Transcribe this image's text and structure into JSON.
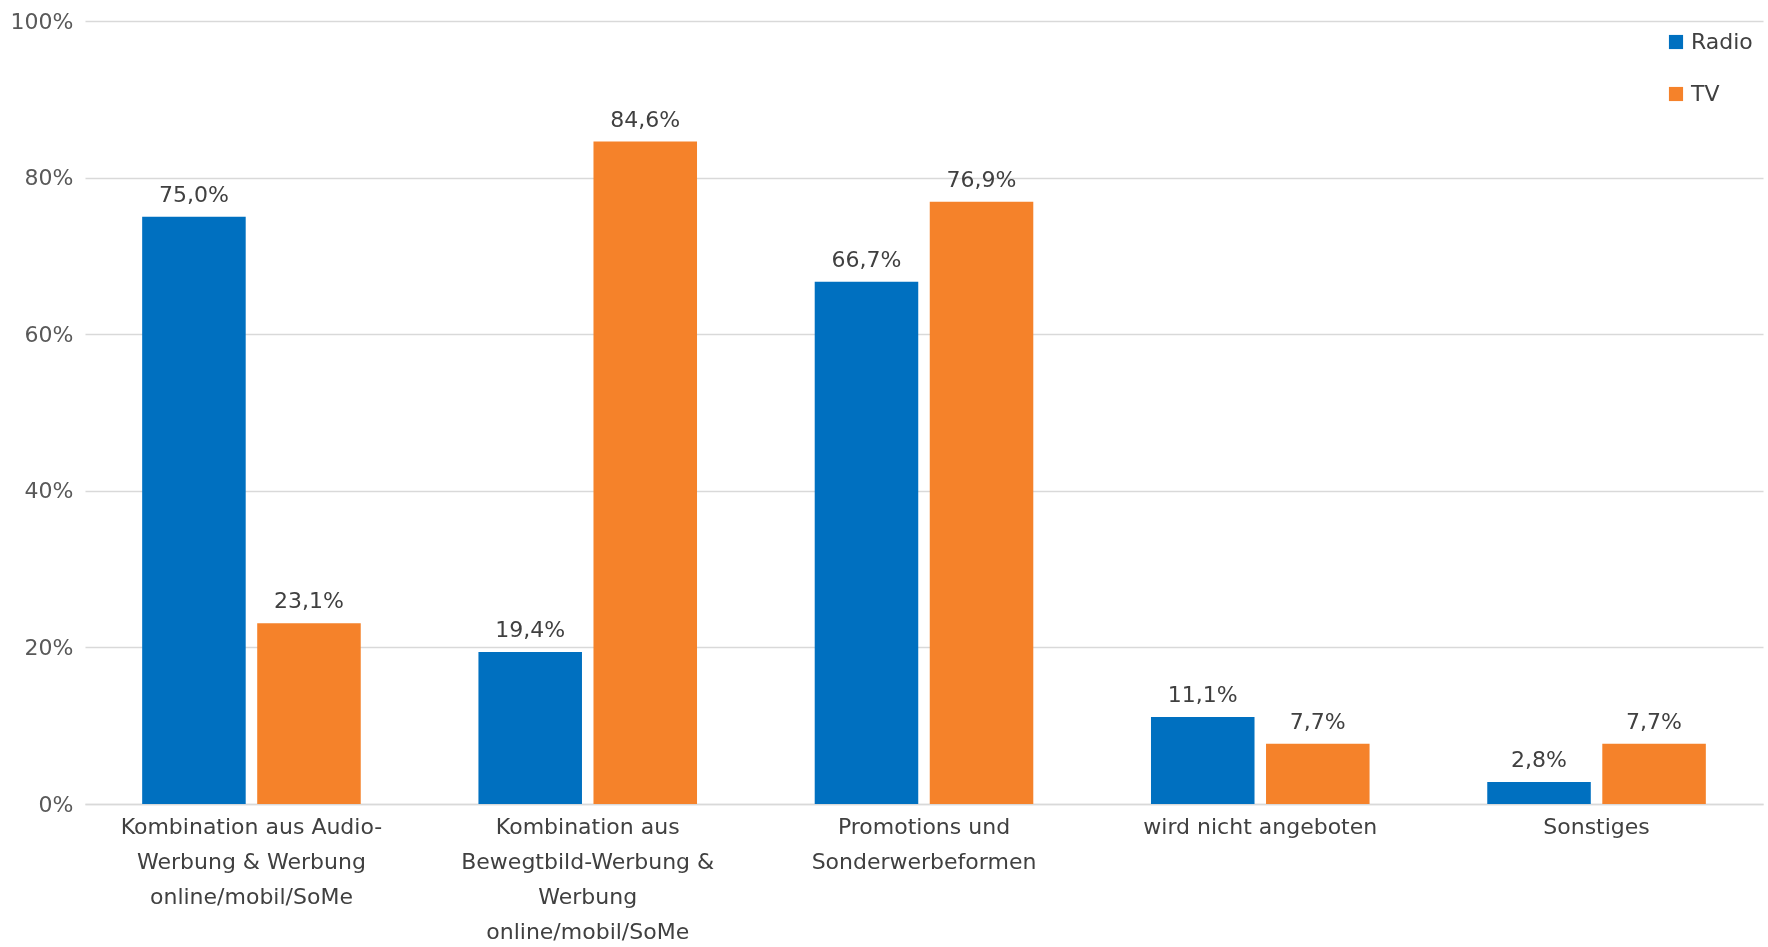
{
  "chart_data": {
    "type": "bar",
    "categories": [
      "Kombination aus Audio-Werbung & Werbung online/mobil/SoMe",
      "Kombination aus Bewegtbild-Werbung & Werbung online/mobil/SoMe",
      "Promotions und Sonderwerbeformen",
      "wird nicht angeboten",
      "Sonstiges"
    ],
    "series": [
      {
        "name": "Radio",
        "color": "#0070c0",
        "values": [
          75.0,
          19.4,
          66.7,
          11.1,
          2.8
        ],
        "value_labels": [
          "75,0%",
          "19,4%",
          "66,7%",
          "11,1%",
          "2,8%"
        ]
      },
      {
        "name": "TV",
        "color": "#f5822a",
        "values": [
          23.1,
          84.6,
          76.9,
          7.7,
          7.7
        ],
        "value_labels": [
          "23,1%",
          "84,6%",
          "76,9%",
          "7,7%",
          "7,7%"
        ]
      }
    ],
    "ylim": [
      0,
      100
    ],
    "yticks": [
      {
        "value": 0,
        "label": "0%"
      },
      {
        "value": 20,
        "label": "20%"
      },
      {
        "value": 40,
        "label": "40%"
      },
      {
        "value": 60,
        "label": "60%"
      },
      {
        "value": 80,
        "label": "80%"
      },
      {
        "value": 100,
        "label": "100%"
      }
    ],
    "grid": "y",
    "legend": "top right"
  }
}
